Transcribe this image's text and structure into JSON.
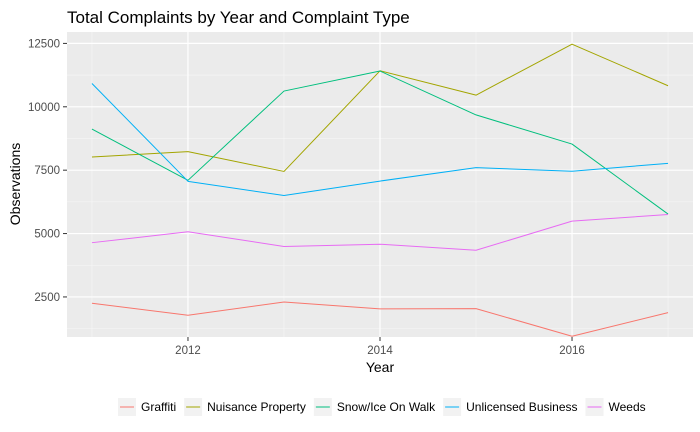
{
  "chart_data": {
    "type": "line",
    "title": "Total Complaints by Year and Complaint Type",
    "xlabel": "Year",
    "ylabel": "Observations",
    "x": [
      2011,
      2012,
      2013,
      2014,
      2015,
      2016,
      2017
    ],
    "xlim": [
      2010.74,
      2017.26
    ],
    "ylim": [
      920,
      12950
    ],
    "xticks": [
      2012,
      2014,
      2016
    ],
    "yticks": [
      2500,
      5000,
      7500,
      10000,
      12500
    ],
    "grid": true,
    "legend_position": "bottom",
    "series": [
      {
        "name": "Graffiti",
        "color": "#F8766D",
        "values": [
          2250,
          1780,
          2300,
          2030,
          2040,
          950,
          1880
        ]
      },
      {
        "name": "Nuisance Property",
        "color": "#A3A500",
        "values": [
          8020,
          8230,
          7450,
          11420,
          10460,
          12470,
          10830
        ]
      },
      {
        "name": "Snow/Ice On Walk",
        "color": "#00BF7D",
        "values": [
          9120,
          7100,
          10620,
          11410,
          9680,
          8530,
          5770
        ]
      },
      {
        "name": "Unlicensed Business",
        "color": "#00B0F6",
        "values": [
          10920,
          7060,
          6500,
          7070,
          7600,
          7460,
          7770
        ]
      },
      {
        "name": "Weeds",
        "color": "#E76BF3",
        "values": [
          4640,
          5070,
          4490,
          4580,
          4340,
          5490,
          5750
        ]
      }
    ]
  }
}
